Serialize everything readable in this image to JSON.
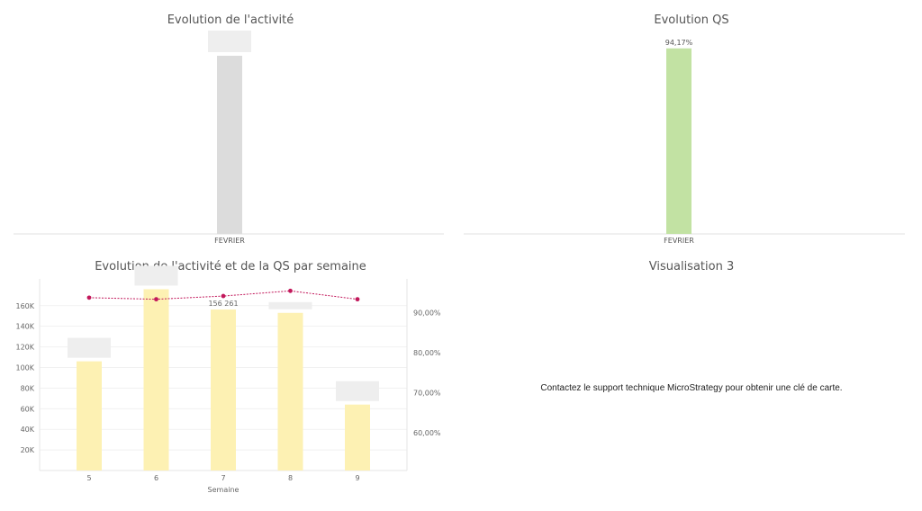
{
  "panels": {
    "activity": {
      "title": "Evolution de l'activité"
    },
    "qs": {
      "title": "Evolution QS"
    },
    "weekly": {
      "title": "Evolution de l'activité et de la QS par semaine"
    },
    "viz3": {
      "title": "Visualisation 3",
      "message": "Contactez le support technique MicroStrategy pour obtenir une clé de carte."
    }
  },
  "colors": {
    "activity_bar": "#dcdcdc",
    "qs_bar": "#c2e2a3",
    "weekly_bar": "#fdf1b3",
    "line": "#c2185b",
    "label_box": "#eeeeee"
  },
  "chart_data": [
    {
      "type": "bar",
      "title": "Evolution de l'activité",
      "categories": [
        "FEVRIER"
      ],
      "values": [
        720000
      ],
      "ylim": [
        0,
        800000
      ],
      "data_labels_visible": false,
      "grid": false
    },
    {
      "type": "bar",
      "title": "Evolution QS",
      "categories": [
        "FEVRIER"
      ],
      "values": [
        94.17
      ],
      "value_labels": [
        "94,17%"
      ],
      "ylim": [
        0,
        100
      ],
      "grid": false
    },
    {
      "type": "bar+line",
      "title": "Evolution de l'activité et de la QS par semaine",
      "xlabel": "Semaine",
      "categories": [
        "5",
        "6",
        "7",
        "8",
        "9"
      ],
      "bar_values": [
        106000,
        176000,
        156261,
        153000,
        64000
      ],
      "bar_labels": [
        "",
        "",
        "156 261",
        "",
        ""
      ],
      "line_values": [
        93.8,
        93.4,
        94.2,
        95.5,
        93.4
      ],
      "y_left": {
        "ticks": [
          20000,
          40000,
          60000,
          80000,
          100000,
          120000,
          140000,
          160000
        ],
        "tick_labels": [
          "20K",
          "40K",
          "60K",
          "80K",
          "100K",
          "120K",
          "140K",
          "160K"
        ],
        "ylim": [
          0,
          186000
        ]
      },
      "y_right": {
        "ticks": [
          60,
          70,
          80,
          90
        ],
        "tick_labels": [
          "60,00%",
          "70,00%",
          "80,00%",
          "90,00%"
        ],
        "ylim": [
          50.5,
          98.5
        ]
      },
      "grid": true
    }
  ]
}
